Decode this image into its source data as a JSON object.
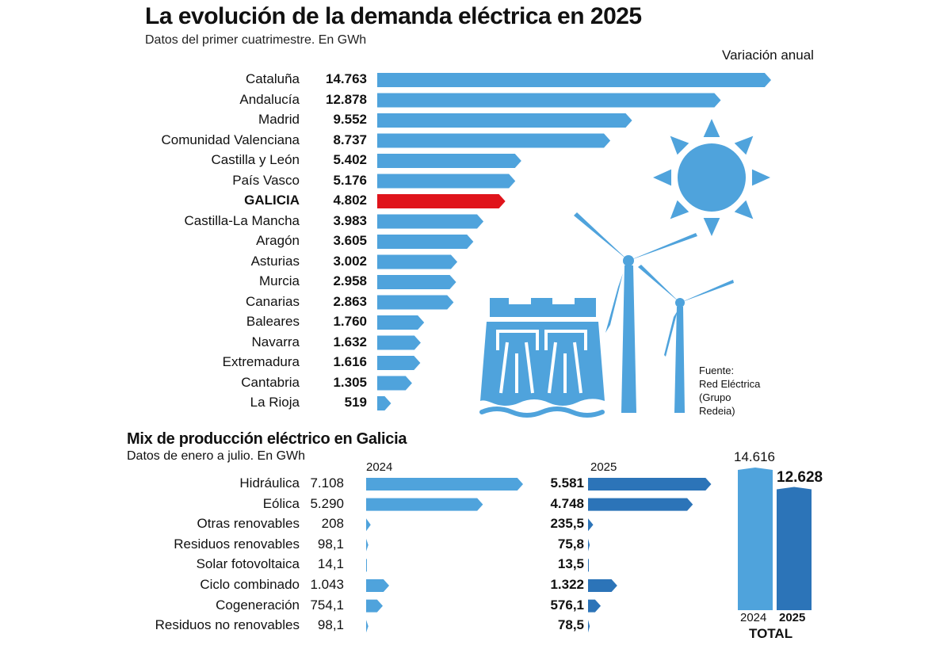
{
  "chart_data": [
    {
      "type": "bar",
      "orientation": "horizontal",
      "title": "La evolución de la demanda eléctrica en 2025",
      "subtitle": "Datos del primer cuatrimestre. En GWh",
      "column_header": "Variación anual",
      "categories": [
        "Cataluña",
        "Andalucía",
        "Madrid",
        "Comunidad Valenciana",
        "Castilla y León",
        "País Vasco",
        "GALICIA",
        "Castilla-La Mancha",
        "Aragón",
        "Asturias",
        "Murcia",
        "Canarias",
        "Baleares",
        "Navarra",
        "Extremadura",
        "Cantabria",
        "La Rioja"
      ],
      "values": [
        14763,
        12878,
        9552,
        8737,
        5402,
        5176,
        4802,
        3983,
        3605,
        3002,
        2958,
        2863,
        1760,
        1632,
        1616,
        1305,
        519
      ],
      "value_labels": [
        "14.763",
        "12.878",
        "9.552",
        "8.737",
        "5.402",
        "5.176",
        "4.802",
        "3.983",
        "3.605",
        "3.002",
        "2.958",
        "2.863",
        "1.760",
        "1.632",
        "1.616",
        "1.305",
        "519"
      ],
      "highlight": "GALICIA",
      "colors": {
        "bar": "#4fa3dc",
        "highlight": "#e0141b"
      }
    },
    {
      "type": "bar",
      "orientation": "horizontal",
      "title": "Mix de producción  eléctrico en Galicia",
      "subtitle": "Datos de enero a julio. En GWh",
      "categories": [
        "Hidráulica",
        "Eólica",
        "Otras renovables",
        "Residuos renovables",
        "Solar fotovoltaica",
        "Ciclo combinado",
        "Cogeneración",
        "Residuos no renovables"
      ],
      "series": [
        {
          "name": "2024",
          "values": [
            7108,
            5290,
            208,
            98.1,
            14.1,
            1043,
            754.1,
            98.1
          ],
          "labels": [
            "7.108",
            "5.290",
            "208",
            "98,1",
            "14,1",
            "1.043",
            "754,1",
            "98,1"
          ],
          "color": "#4fa3dc"
        },
        {
          "name": "2025",
          "values": [
            5581,
            4748,
            235.5,
            75.8,
            13.5,
            1322,
            576.1,
            78.5
          ],
          "labels": [
            "5.581",
            "4.748",
            "235,5",
            "75,8",
            "13,5",
            "1.322",
            "576,1",
            "78,5"
          ],
          "color": "#2c74b8"
        }
      ]
    },
    {
      "type": "bar",
      "title": "TOTAL",
      "categories": [
        "2024",
        "2025"
      ],
      "values": [
        14616,
        12628
      ],
      "value_labels": [
        "14.616",
        "12.628"
      ],
      "colors": [
        "#4fa3dc",
        "#2c74b8"
      ]
    }
  ],
  "source": {
    "lines": [
      "Fuente:",
      "Red Eléctrica",
      "(Grupo",
      "Redeia)"
    ]
  },
  "icons": [
    "sun-icon",
    "wind-turbine-icon",
    "hydro-dam-icon"
  ]
}
